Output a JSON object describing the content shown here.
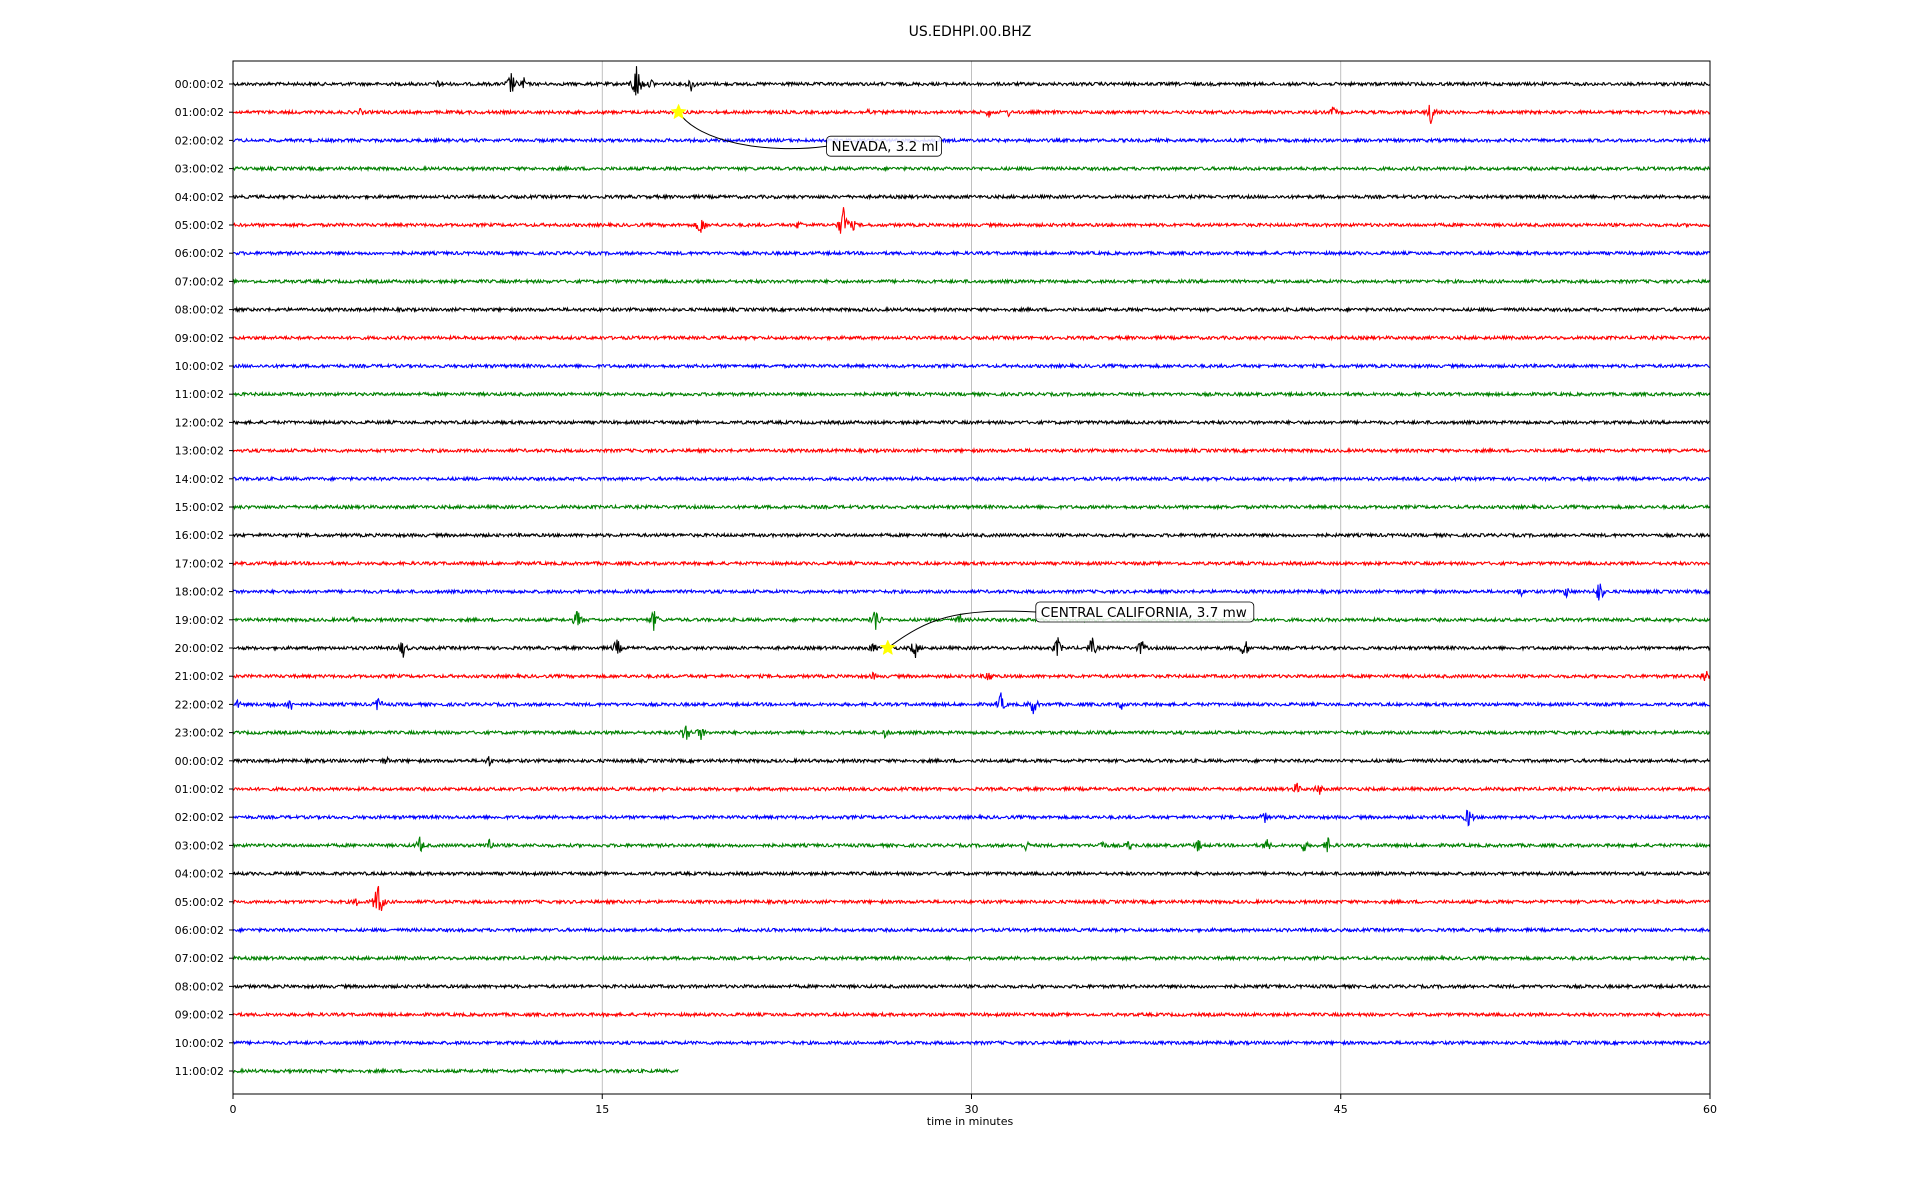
{
  "chart_data": {
    "type": "line",
    "title": "US.EDHPI.00.BHZ",
    "xlabel": "time in minutes",
    "ylabel": "",
    "xlim": [
      0,
      60
    ],
    "xticks": [
      "0",
      "15",
      "30",
      "45",
      "60"
    ],
    "grid": "vertical lines at 15, 30, 45",
    "trace_colors": [
      "#000000",
      "#ff0000",
      "#0000ff",
      "#008000"
    ],
    "rows": [
      {
        "label": "00:00:02",
        "events": [
          [
            8.4,
            6
          ],
          [
            11.3,
            14
          ],
          [
            11.8,
            8
          ],
          [
            16.4,
            24
          ],
          [
            17.0,
            6
          ],
          [
            18.6,
            9
          ]
        ]
      },
      {
        "label": "01:00:02",
        "events": [
          [
            5.2,
            5
          ],
          [
            25.8,
            5
          ],
          [
            30.7,
            6
          ],
          [
            31.5,
            5
          ],
          [
            44.7,
            7
          ],
          [
            48.7,
            16
          ]
        ]
      },
      {
        "label": "02:00:02",
        "events": []
      },
      {
        "label": "03:00:02",
        "events": []
      },
      {
        "label": "04:00:02",
        "events": []
      },
      {
        "label": "05:00:02",
        "events": [
          [
            19.0,
            13
          ],
          [
            23.0,
            6
          ],
          [
            24.8,
            22
          ],
          [
            25.2,
            6
          ]
        ]
      },
      {
        "label": "06:00:02",
        "events": []
      },
      {
        "label": "07:00:02",
        "events": []
      },
      {
        "label": "08:00:02",
        "events": []
      },
      {
        "label": "09:00:02",
        "events": []
      },
      {
        "label": "10:00:02",
        "events": []
      },
      {
        "label": "11:00:02",
        "events": []
      },
      {
        "label": "12:00:02",
        "events": []
      },
      {
        "label": "13:00:02",
        "events": []
      },
      {
        "label": "14:00:02",
        "events": []
      },
      {
        "label": "15:00:02",
        "events": []
      },
      {
        "label": "16:00:02",
        "events": []
      },
      {
        "label": "17:00:02",
        "events": []
      },
      {
        "label": "18:00:02",
        "events": [
          [
            52.3,
            6
          ],
          [
            54.2,
            8
          ],
          [
            55.5,
            14
          ]
        ]
      },
      {
        "label": "19:00:02",
        "events": [
          [
            4.9,
            4
          ],
          [
            14.0,
            12
          ],
          [
            17.1,
            12
          ],
          [
            26.1,
            16
          ],
          [
            29.5,
            7
          ]
        ]
      },
      {
        "label": "20:00:02",
        "events": [
          [
            6.9,
            11
          ],
          [
            15.6,
            11
          ],
          [
            26.0,
            7
          ],
          [
            27.7,
            12
          ],
          [
            33.5,
            12
          ],
          [
            34.9,
            12
          ],
          [
            36.9,
            10
          ],
          [
            41.1,
            12
          ]
        ]
      },
      {
        "label": "21:00:02",
        "events": [
          [
            26.0,
            5
          ],
          [
            30.7,
            9
          ],
          [
            59.8,
            10
          ]
        ]
      },
      {
        "label": "22:00:02",
        "events": [
          [
            0.2,
            5
          ],
          [
            1.6,
            6
          ],
          [
            2.3,
            10
          ],
          [
            5.9,
            9
          ],
          [
            31.2,
            12
          ],
          [
            32.5,
            12
          ],
          [
            36.1,
            6
          ]
        ]
      },
      {
        "label": "23:00:02",
        "events": [
          [
            18.4,
            13
          ],
          [
            19.0,
            9
          ],
          [
            26.5,
            7
          ]
        ]
      },
      {
        "label": "00:00:02",
        "events": [
          [
            6.2,
            6
          ],
          [
            10.4,
            7
          ]
        ]
      },
      {
        "label": "01:00:02",
        "events": [
          [
            43.2,
            8
          ],
          [
            44.1,
            8
          ]
        ]
      },
      {
        "label": "02:00:02",
        "events": [
          [
            41.9,
            7
          ],
          [
            50.2,
            12
          ]
        ]
      },
      {
        "label": "03:00:02",
        "events": [
          [
            7.6,
            10
          ],
          [
            10.4,
            10
          ],
          [
            32.2,
            7
          ],
          [
            35.3,
            7
          ],
          [
            36.4,
            7
          ],
          [
            39.2,
            8
          ],
          [
            42.0,
            8
          ],
          [
            43.5,
            8
          ],
          [
            44.5,
            10
          ]
        ]
      },
      {
        "label": "04:00:02",
        "events": []
      },
      {
        "label": "05:00:02",
        "events": [
          [
            5.0,
            6
          ],
          [
            5.9,
            24
          ]
        ]
      },
      {
        "label": "06:00:02",
        "events": []
      },
      {
        "label": "07:00:02",
        "events": []
      },
      {
        "label": "08:00:02",
        "events": []
      },
      {
        "label": "09:00:02",
        "events": []
      },
      {
        "label": "10:00:02",
        "events": []
      },
      {
        "label": "11:00:02",
        "events": [],
        "ends_at": 18.1
      }
    ],
    "annotations": [
      {
        "text": "NEVADA, 3.2 ml",
        "row": 1,
        "x": 18.1
      },
      {
        "text": "CENTRAL CALIFORNIA, 3.7 mw",
        "row": 20,
        "x": 26.6
      }
    ]
  }
}
